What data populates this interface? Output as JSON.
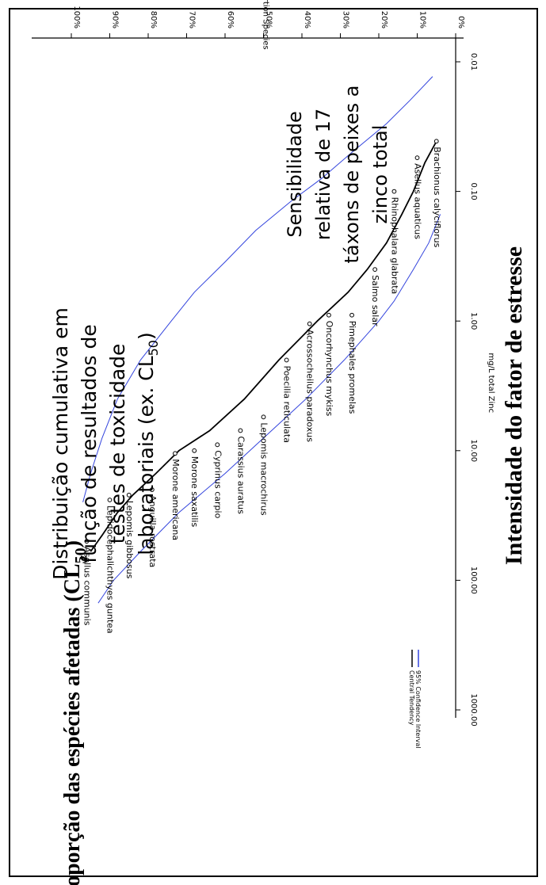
{
  "outer_labels": {
    "bottom_title": "Intensidade do fator de estresse",
    "left_title_main": "Proporção das espécies afetadas (CL",
    "left_title_sub": "50",
    "left_title_close": ")"
  },
  "chart_data": {
    "type": "scatter",
    "xlabel": "mg/L total Zinc",
    "ylabel": "Proportion Species",
    "x_scale": "log",
    "xlim": [
      0.01,
      1000
    ],
    "ylim": [
      0,
      1
    ],
    "x_ticks": [
      "0.01",
      "0.10",
      "1.00",
      "10.00",
      "100.00",
      "1000.00"
    ],
    "y_ticks": [
      "0%",
      "10%",
      "20%",
      "30%",
      "40%",
      "50%",
      "60%",
      "70%",
      "80%",
      "90%",
      "100%"
    ],
    "points": [
      {
        "name": "Brachionus calyciflorus",
        "x": 0.041,
        "y": 0.05
      },
      {
        "name": "Asellus aquaticus",
        "x": 0.055,
        "y": 0.1
      },
      {
        "name": "Rhinophalara glabrata",
        "x": 0.1,
        "y": 0.16
      },
      {
        "name": "Salmo salar",
        "x": 0.4,
        "y": 0.21
      },
      {
        "name": "Pimephales promelas",
        "x": 0.9,
        "y": 0.27
      },
      {
        "name": "Oncorhynchus mykiss",
        "x": 0.9,
        "y": 0.33
      },
      {
        "name": "Acrossocheilus paradoxus",
        "x": 1.05,
        "y": 0.38
      },
      {
        "name": "Poecilia reticulata",
        "x": 2.0,
        "y": 0.44
      },
      {
        "name": "Lepomis macrochirus",
        "x": 5.5,
        "y": 0.5
      },
      {
        "name": "Carassius auratus",
        "x": 7.0,
        "y": 0.56
      },
      {
        "name": "Cyprinus carpio",
        "x": 9.0,
        "y": 0.62
      },
      {
        "name": "Morone saxatilis",
        "x": 10.0,
        "y": 0.68
      },
      {
        "name": "Morone americana",
        "x": 10.5,
        "y": 0.73
      },
      {
        "name": "Anguilla rostrata",
        "x": 20.0,
        "y": 0.79
      },
      {
        "name": "Lepomis gibbosus",
        "x": 22.0,
        "y": 0.85
      },
      {
        "name": "Lepidocephalichthyes guntea",
        "x": 24.0,
        "y": 0.9
      },
      {
        "name": "Asellus communis",
        "x": 50.0,
        "y": 0.96
      }
    ],
    "series": [
      {
        "name": "Central Tendency",
        "color": "#000000",
        "x": [
          0.041,
          0.06,
          0.1,
          0.15,
          0.25,
          0.4,
          0.6,
          1.0,
          2.0,
          4.0,
          7.0,
          10.0,
          15.0,
          22.0,
          30.0,
          45.0,
          60.0
        ],
        "y": [
          0.05,
          0.08,
          0.11,
          0.14,
          0.18,
          0.23,
          0.28,
          0.36,
          0.46,
          0.55,
          0.64,
          0.72,
          0.78,
          0.84,
          0.88,
          0.92,
          0.95
        ]
      },
      {
        "name": "95% Confidence Interval",
        "color": "#3344dd",
        "x": [
          0.013,
          0.02,
          0.03,
          0.05,
          0.08,
          0.12,
          0.2,
          0.35,
          0.6,
          1.0,
          2.0,
          4.0,
          8.0,
          15.0,
          25.0
        ],
        "y": [
          0.06,
          0.12,
          0.18,
          0.27,
          0.35,
          0.43,
          0.52,
          0.6,
          0.68,
          0.74,
          0.82,
          0.88,
          0.92,
          0.95,
          0.97
        ]
      },
      {
        "name": "95% Confidence Interval (lower)",
        "color": "#3344dd",
        "x": [
          0.15,
          0.25,
          0.4,
          0.7,
          1.0,
          2.0,
          4.0,
          8.0,
          15.0,
          30.0,
          60.0,
          100.0,
          150.0
        ],
        "y": [
          0.04,
          0.07,
          0.11,
          0.16,
          0.2,
          0.29,
          0.39,
          0.5,
          0.6,
          0.72,
          0.82,
          0.89,
          0.93
        ]
      }
    ],
    "legend": [
      {
        "label": "Central Tendency",
        "color": "#000000"
      },
      {
        "label": "95% Confidence Interval",
        "color": "#3344dd"
      }
    ],
    "annotations": {
      "left_note": [
        "Distribuição cumulativa em",
        "função de resultados de",
        "testes de toxicidade",
        "laboratoriais (ex. CL"
      ],
      "left_note_sub": "50",
      "left_note_close": ")",
      "right_note": [
        "Sensibilidade",
        "relativa de 17",
        "táxons de peixes a",
        "zinco total"
      ]
    }
  }
}
